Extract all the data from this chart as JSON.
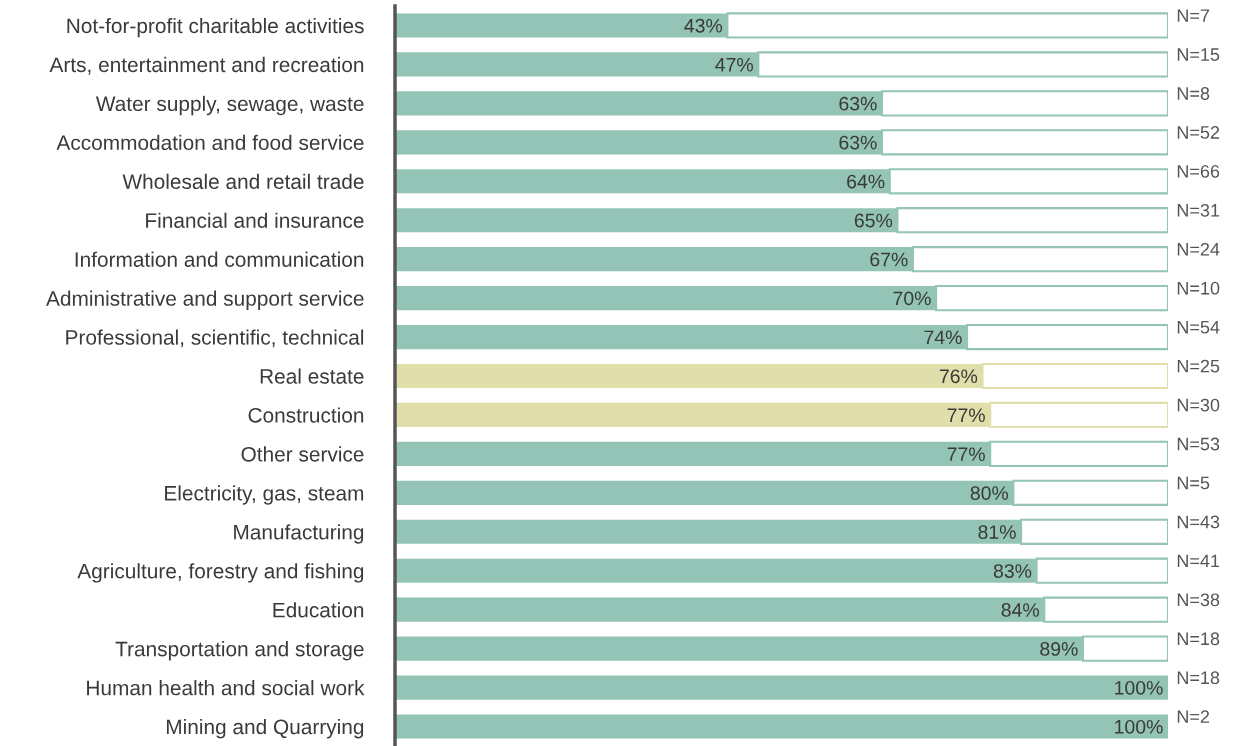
{
  "chart_data": {
    "type": "bar",
    "orientation": "horizontal",
    "stacked": true,
    "xlim": [
      0,
      100
    ],
    "tick_labels": "y",
    "grid": false,
    "legend": false,
    "categories": [
      "Not-for-profit charitable activities",
      "Arts, entertainment and recreation",
      "Water supply, sewage, waste",
      "Accommodation and food service",
      "Wholesale and retail trade",
      "Financial and insurance",
      "Information and communication",
      "Administrative and support service",
      "Professional, scientific, technical",
      "Real estate",
      "Construction",
      "Other service",
      "Electricity, gas, steam",
      "Manufacturing",
      "Agriculture, forestry and fishing",
      "Education",
      "Transportation and storage",
      "Human health and social work",
      "Mining and Quarrying"
    ],
    "series": [
      {
        "values": [
          43,
          47,
          63,
          63,
          64,
          65,
          67,
          70,
          74,
          76,
          77,
          77,
          80,
          81,
          83,
          84,
          89,
          100,
          100
        ],
        "colors": [
          "#93c4b6",
          "#93c4b6",
          "#93c4b6",
          "#93c4b6",
          "#93c4b6",
          "#93c4b6",
          "#93c4b6",
          "#93c4b6",
          "#93c4b6",
          "#e0dfab",
          "#e0dfab",
          "#93c4b6",
          "#93c4b6",
          "#93c4b6",
          "#93c4b6",
          "#93c4b6",
          "#93c4b6",
          "#93c4b6",
          "#93c4b6"
        ],
        "value_labels": [
          "43%",
          "47%",
          "63%",
          "63%",
          "64%",
          "65%",
          "67%",
          "70%",
          "74%",
          "76%",
          "77%",
          "77%",
          "80%",
          "81%",
          "83%",
          "84%",
          "89%",
          "100%",
          "100%"
        ]
      },
      {
        "values": [
          57,
          53,
          37,
          37,
          36,
          35,
          33,
          30,
          26,
          24,
          23,
          23,
          20,
          19,
          17,
          16,
          11,
          0,
          0
        ],
        "color": "#ffffff"
      }
    ],
    "annotations": [
      "N=7",
      "N=15",
      "N=8",
      "N=52",
      "N=66",
      "N=31",
      "N=24",
      "N=10",
      "N=54",
      "N=25",
      "N=30",
      "N=53",
      "N=5",
      "N=43",
      "N=41",
      "N=38",
      "N=18",
      "N=18",
      "N=2"
    ]
  }
}
